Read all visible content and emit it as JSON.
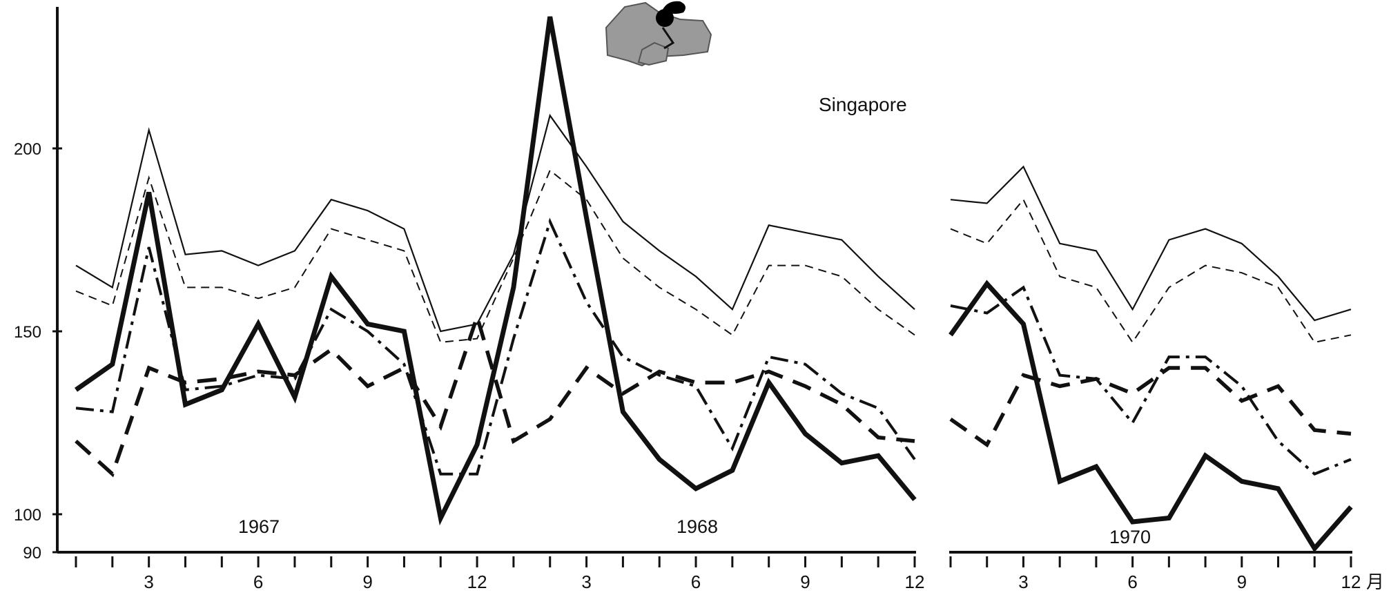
{
  "chart_data": {
    "type": "line",
    "title": "Singapore",
    "xlabel": "",
    "ylabel": "",
    "ylim": [
      90,
      240
    ],
    "y_ticks": [
      {
        "value": 100,
        "label": "100"
      },
      {
        "value": 150,
        "label": "150"
      },
      {
        "value": 200,
        "label": "200"
      },
      {
        "value": 90,
        "label": "90"
      }
    ],
    "x_unit_label": "月",
    "panels": [
      {
        "name": "1967-1968",
        "years": [
          "1967",
          "1968"
        ],
        "months": [
          1,
          2,
          3,
          4,
          5,
          6,
          7,
          8,
          9,
          10,
          11,
          12,
          1,
          2,
          3,
          4,
          5,
          6,
          7,
          8,
          9,
          10,
          11,
          12
        ],
        "tick_labels": [
          {
            "index": 2,
            "label": "3"
          },
          {
            "index": 5,
            "label": "6"
          },
          {
            "index": 8,
            "label": "9"
          },
          {
            "index": 11,
            "label": "12"
          },
          {
            "index": 14,
            "label": "3"
          },
          {
            "index": 17,
            "label": "6"
          },
          {
            "index": 20,
            "label": "9"
          },
          {
            "index": 23,
            "label": "12"
          }
        ],
        "series": [
          {
            "style": "thin-solid",
            "values": [
              168,
              162,
              205,
              171,
              172,
              168,
              172,
              186,
              183,
              178,
              150,
              152,
              171,
              209,
              195,
              180,
              172,
              165,
              156,
              179,
              177,
              175,
              165,
              156
            ]
          },
          {
            "style": "thin-dashed",
            "values": [
              161,
              157,
              192,
              162,
              162,
              159,
              162,
              178,
              175,
              172,
              147,
              148,
              170,
              194,
              186,
              170,
              162,
              156,
              149,
              168,
              168,
              165,
              156,
              149
            ]
          },
          {
            "style": "dash-dot",
            "values": [
              129,
              128,
              173,
              134,
              135,
              138,
              137,
              156,
              150,
              141,
              111,
              111,
              148,
              180,
              158,
              143,
              138,
              135,
              118,
              143,
              141,
              133,
              129,
              115
            ]
          },
          {
            "style": "thick-dashed",
            "values": [
              120,
              111,
              140,
              136,
              137,
              139,
              138,
              145,
              135,
              140,
              124,
              154,
              120,
              126,
              140,
              133,
              139,
              136,
              136,
              139,
              135,
              130,
              121,
              120
            ]
          },
          {
            "style": "thick-solid",
            "values": [
              134,
              141,
              188,
              130,
              134,
              152,
              132,
              165,
              152,
              150,
              99,
              119,
              162,
              236,
              181,
              128,
              115,
              107,
              112,
              136,
              122,
              114,
              116,
              104
            ]
          }
        ]
      },
      {
        "name": "1970",
        "years": [
          "1970"
        ],
        "months": [
          1,
          2,
          3,
          4,
          5,
          6,
          7,
          8,
          9,
          10,
          11,
          12
        ],
        "tick_labels": [
          {
            "index": 2,
            "label": "3"
          },
          {
            "index": 5,
            "label": "6"
          },
          {
            "index": 8,
            "label": "9"
          },
          {
            "index": 11,
            "label": "12"
          }
        ],
        "series": [
          {
            "style": "thin-solid",
            "values": [
              186,
              185,
              195,
              174,
              172,
              156,
              175,
              178,
              174,
              165,
              153,
              156
            ]
          },
          {
            "style": "thin-dashed",
            "values": [
              178,
              174,
              186,
              165,
              162,
              147,
              162,
              168,
              166,
              162,
              147,
              149
            ]
          },
          {
            "style": "dash-dot",
            "values": [
              157,
              155,
              162,
              138,
              137,
              125,
              143,
              143,
              135,
              120,
              111,
              115
            ]
          },
          {
            "style": "thick-dashed",
            "values": [
              126,
              119,
              138,
              135,
              137,
              133,
              140,
              140,
              131,
              135,
              123,
              122
            ]
          },
          {
            "style": "thick-solid",
            "values": [
              149,
              163,
              152,
              109,
              113,
              98,
              99,
              116,
              109,
              107,
              91,
              102
            ]
          }
        ]
      }
    ]
  },
  "map_icon": "singapore-map-icon"
}
